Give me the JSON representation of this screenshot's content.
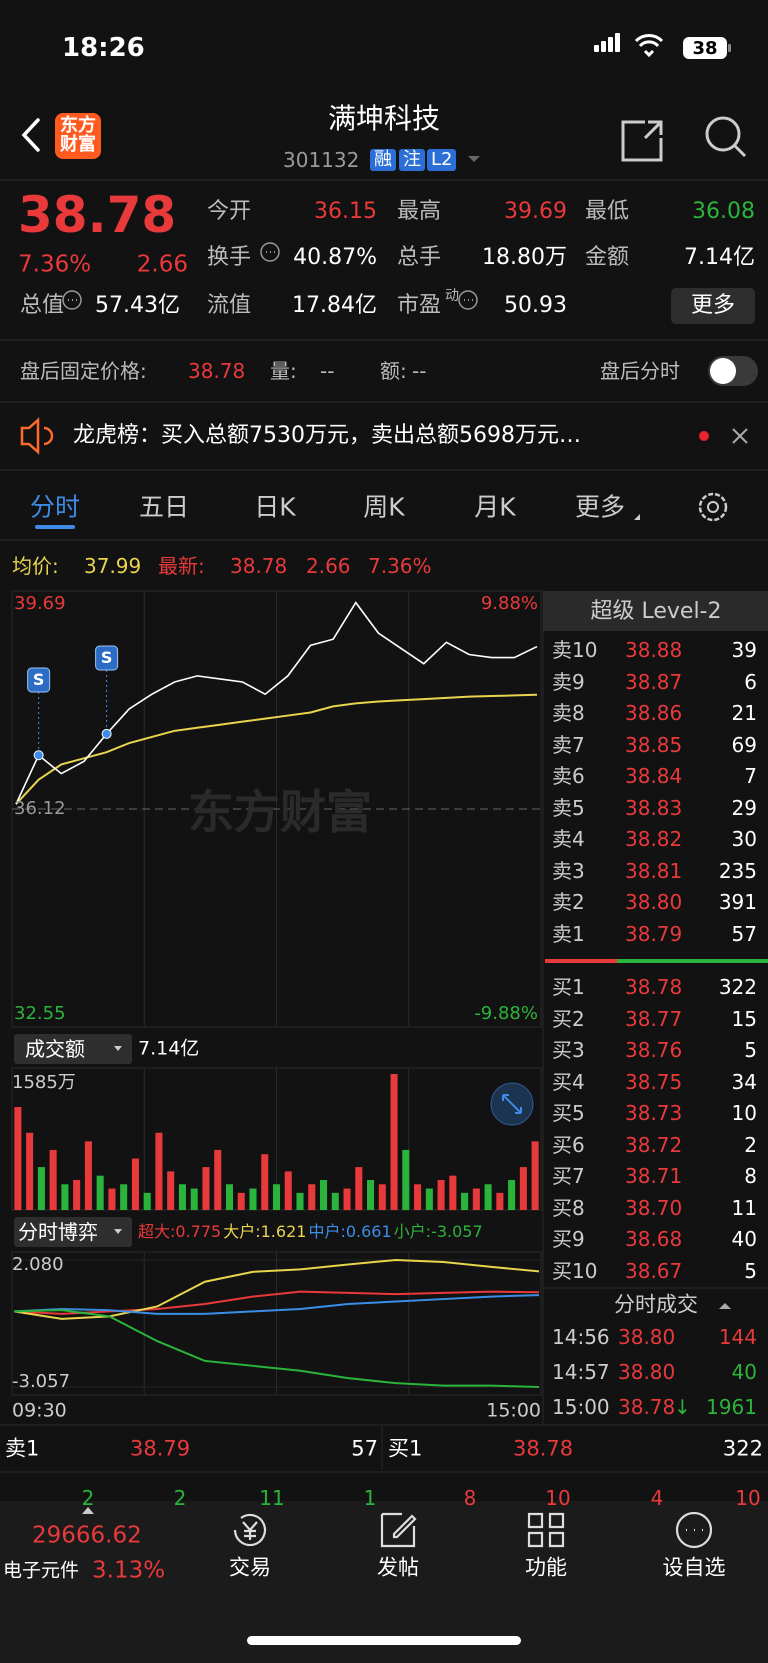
{
  "status": {
    "time": "18:26",
    "battery": "38"
  },
  "header": {
    "logo": "东方财富",
    "title": "满坤科技",
    "code": "301132",
    "tags": [
      "融",
      "注",
      "L2"
    ]
  },
  "quote": {
    "price": "38.78",
    "change_pct": "7.36%",
    "change": "2.66",
    "fields": [
      [
        "今开",
        "36.15"
      ],
      [
        "最高",
        "39.69"
      ],
      [
        "最低",
        "36.08"
      ],
      [
        "换手",
        "40.87%"
      ],
      [
        "总手",
        "18.80万"
      ],
      [
        "金额",
        "7.14亿"
      ],
      [
        "总值",
        "57.43亿"
      ],
      [
        "流值",
        "17.84亿"
      ],
      [
        "市盈",
        "50.93"
      ]
    ],
    "pe_mark": "动",
    "more": "更多"
  },
  "after_hours": {
    "label": "盘后固定价格:",
    "price": "38.78",
    "vol_label": "量:",
    "vol": "--",
    "amt_label": "额:",
    "amt": "--",
    "toggle": "盘后分时"
  },
  "notice": {
    "text": "龙虎榜：买入总额7530万元，卖出总额5698万元…"
  },
  "tabs": [
    "分时",
    "五日",
    "日K",
    "周K",
    "月K",
    "更多"
  ],
  "info": {
    "avg_label": "均价:",
    "avg": "37.99",
    "last_label": "最新:",
    "last": "38.78",
    "change": "2.66",
    "pct": "7.36%"
  },
  "price_chart": {
    "ylim": [
      32.55,
      39.69
    ],
    "yticks": [
      39.69,
      36.12,
      32.55
    ],
    "pct_labels": [
      "9.88%",
      "-9.88%"
    ],
    "watermark": "东方财富",
    "trade_marks": [
      "S",
      "S"
    ],
    "price": [
      36.2,
      37.0,
      36.7,
      36.9,
      37.35,
      37.76,
      38.0,
      38.2,
      38.3,
      38.25,
      38.2,
      38.0,
      38.3,
      38.8,
      38.9,
      39.5,
      39.0,
      38.75,
      38.5,
      38.85,
      38.65,
      38.6,
      38.6,
      38.78
    ],
    "avg": [
      36.2,
      36.6,
      36.85,
      36.95,
      37.05,
      37.2,
      37.3,
      37.4,
      37.45,
      37.5,
      37.55,
      37.6,
      37.65,
      37.7,
      37.8,
      37.85,
      37.88,
      37.9,
      37.92,
      37.94,
      37.96,
      37.97,
      37.98,
      37.99
    ],
    "price_color": "#ffffff",
    "avg_color": "#e8d44d"
  },
  "volume": {
    "label": "成交额",
    "total": "7.14亿",
    "max_label": "1585万",
    "ylim": [
      0,
      1585
    ],
    "values": [
      1200,
      900,
      500,
      700,
      300,
      350,
      800,
      400,
      250,
      300,
      600,
      200,
      900,
      450,
      300,
      250,
      500,
      700,
      300,
      200,
      250,
      650,
      300,
      450,
      200,
      300,
      350,
      200,
      250,
      500,
      350,
      300,
      1585,
      700,
      300,
      250,
      350,
      400,
      200,
      250,
      300,
      200,
      350,
      500,
      800
    ],
    "directions": [
      "up",
      "up",
      "down",
      "up",
      "down",
      "up",
      "up",
      "down",
      "up",
      "down",
      "up",
      "down",
      "up",
      "up",
      "down",
      "down",
      "up",
      "up",
      "down",
      "up",
      "down",
      "up",
      "down",
      "up",
      "down",
      "up",
      "down",
      "down",
      "up",
      "up",
      "down",
      "up",
      "up",
      "down",
      "up",
      "down",
      "up",
      "up",
      "down",
      "up",
      "down",
      "up",
      "down",
      "up",
      "up"
    ],
    "palette": {
      "up": "#e8393b",
      "down": "#2bb43c"
    }
  },
  "flow": {
    "label": "分时博弈",
    "ylim": [
      -3.057,
      2.08
    ],
    "yticks": [
      {
        "value": 2.08,
        "label": "2.080"
      },
      -3.057
    ],
    "x_labels": [
      "09:30",
      "15:00"
    ],
    "series": [
      {
        "name": "超大:",
        "value": "0.775",
        "color": "#e8393b",
        "values": [
          0,
          -0.1,
          0,
          0.1,
          0.3,
          0.6,
          0.8,
          0.75,
          0.7,
          0.75,
          0.8,
          0.775
        ]
      },
      {
        "name": "大户:",
        "value": "1.621",
        "color": "#e8d44d",
        "values": [
          0,
          -0.3,
          -0.2,
          0.2,
          1.2,
          1.6,
          1.7,
          1.9,
          2.08,
          2.0,
          1.8,
          1.621
        ]
      },
      {
        "name": "中户:",
        "value": "0.661",
        "color": "#3a8ee6",
        "values": [
          0,
          0.1,
          0.05,
          -0.1,
          -0.1,
          0,
          0.1,
          0.3,
          0.4,
          0.5,
          0.6,
          0.661
        ]
      },
      {
        "name": "小户:",
        "value": "-3.057",
        "color": "#2bb43c",
        "values": [
          0,
          0.05,
          -0.2,
          -1.2,
          -2.0,
          -2.2,
          -2.4,
          -2.7,
          -2.9,
          -3.0,
          -3.0,
          -3.057
        ]
      }
    ]
  },
  "order_book": {
    "title": "超级 Level-2",
    "asks": [
      [
        "卖10",
        "38.88",
        "39"
      ],
      [
        "卖9",
        "38.87",
        "6"
      ],
      [
        "卖8",
        "38.86",
        "21"
      ],
      [
        "卖7",
        "38.85",
        "69"
      ],
      [
        "卖6",
        "38.84",
        "7"
      ],
      [
        "卖5",
        "38.83",
        "29"
      ],
      [
        "卖4",
        "38.82",
        "30"
      ],
      [
        "卖3",
        "38.81",
        "235"
      ],
      [
        "卖2",
        "38.80",
        "391"
      ],
      [
        "卖1",
        "38.79",
        "57"
      ]
    ],
    "bids": [
      [
        "买1",
        "38.78",
        "322"
      ],
      [
        "买2",
        "38.77",
        "15"
      ],
      [
        "买3",
        "38.76",
        "5"
      ],
      [
        "买4",
        "38.75",
        "34"
      ],
      [
        "买5",
        "38.73",
        "10"
      ],
      [
        "买6",
        "38.72",
        "2"
      ],
      [
        "买7",
        "38.71",
        "8"
      ],
      [
        "买8",
        "38.70",
        "11"
      ],
      [
        "买9",
        "38.68",
        "40"
      ],
      [
        "买10",
        "38.67",
        "5"
      ]
    ]
  },
  "trades": {
    "title": "分时成交",
    "rows": [
      {
        "time": "14:56",
        "price": "38.80",
        "vol": "144",
        "color": "#e8393b"
      },
      {
        "time": "14:57",
        "price": "38.80",
        "vol": "40",
        "color": "#2bb43c"
      },
      {
        "time": "15:00",
        "price": "38.78",
        "arrow": "↓",
        "vol": "1961",
        "color": "#2bb43c"
      }
    ]
  },
  "bottom_quote": {
    "ask": [
      "卖1",
      "38.79",
      "57"
    ],
    "bid": [
      "买1",
      "38.78",
      "322"
    ],
    "partial": [
      "2",
      "2",
      "11",
      "1",
      "8",
      "10",
      "4",
      "10"
    ]
  },
  "tabbar": {
    "index": "29666.62",
    "index_name": "电子元件",
    "index_pct": "3.13%",
    "items": [
      "交易",
      "发帖",
      "功能",
      "设自选"
    ]
  }
}
